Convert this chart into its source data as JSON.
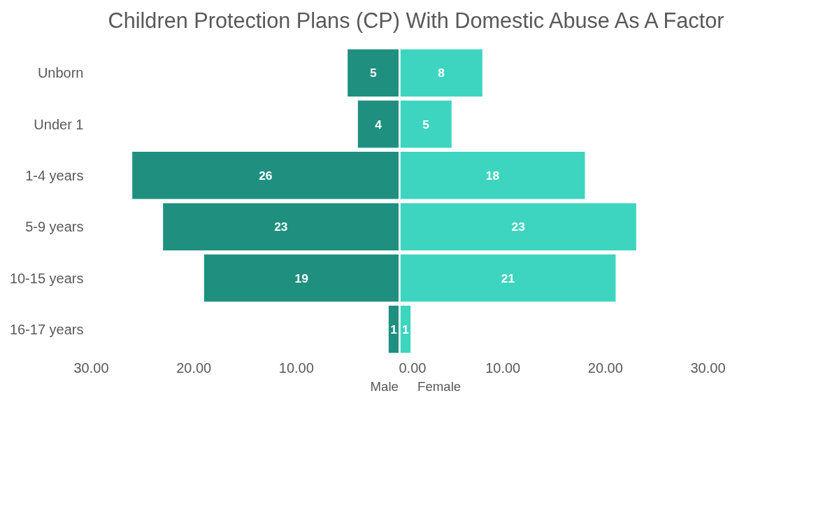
{
  "chart_data": [
    {
      "type": "bar",
      "orientation": "horizontal",
      "title": "Children Protection Plans (CP) With Domestic Abuse As A Factor",
      "categories": [
        "Unborn",
        "Under 1",
        "1-4 years",
        "5-9 years",
        "10-15 years",
        "16-17 years"
      ],
      "series": [
        {
          "name": "Male",
          "color": "#1f9080",
          "values": [
            5,
            4,
            26,
            23,
            19,
            1
          ]
        }
      ],
      "xlim": [
        30,
        0
      ],
      "xticks": [
        {
          "value": 30,
          "label": "30.00"
        },
        {
          "value": 20,
          "label": "20.00"
        },
        {
          "value": 10,
          "label": "10.00"
        }
      ],
      "data_labels": true,
      "grid": false,
      "legend": "bottom right"
    },
    {
      "type": "bar",
      "orientation": "horizontal",
      "series": [
        {
          "name": "Female",
          "color": "#3dd5c0",
          "values": [
            8,
            5,
            18,
            23,
            21,
            1
          ]
        }
      ],
      "xlim": [
        0,
        30
      ],
      "xticks": [
        {
          "value": 0,
          "label": "0.00"
        },
        {
          "value": 10,
          "label": "10.00"
        },
        {
          "value": 20,
          "label": "20.00"
        },
        {
          "value": 30,
          "label": "30.00"
        }
      ],
      "data_labels": true,
      "grid": false,
      "legend": "bottom left",
      "tick_labels": "x"
    }
  ]
}
